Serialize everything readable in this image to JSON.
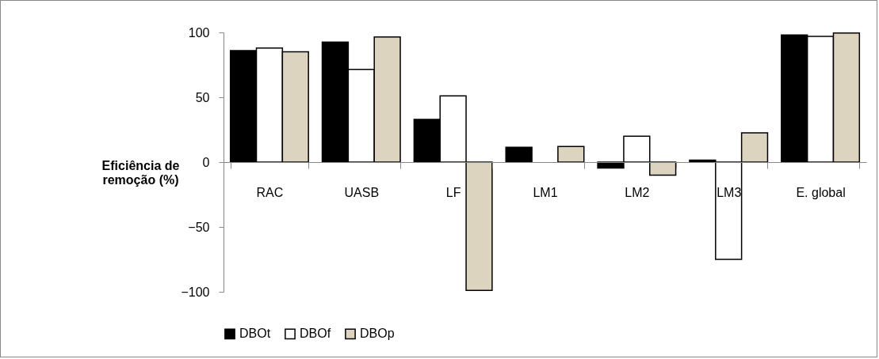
{
  "chart_data": {
    "type": "bar",
    "ylabel": "Eficiência de remoção (%)",
    "categories": [
      "RAC",
      "UASB",
      "LF",
      "LM1",
      "LM2",
      "LM3",
      "E. global"
    ],
    "series": [
      {
        "name": "DBOt",
        "color": "#000000",
        "values": [
          86,
          92.5,
          33,
          11.5,
          -4.5,
          1.5,
          98
        ]
      },
      {
        "name": "DBOf",
        "color": "#ffffff",
        "values": [
          88,
          71.5,
          51,
          null,
          20,
          -75,
          97
        ]
      },
      {
        "name": "DBOp",
        "color": "#ddd4bf",
        "values": [
          85,
          96.5,
          -99,
          12,
          -10,
          22.5,
          99.5
        ]
      }
    ],
    "ylim": [
      -100,
      100
    ],
    "yticks": [
      -100,
      -50,
      0,
      50,
      100
    ],
    "grid": false,
    "legend": "bottom"
  }
}
